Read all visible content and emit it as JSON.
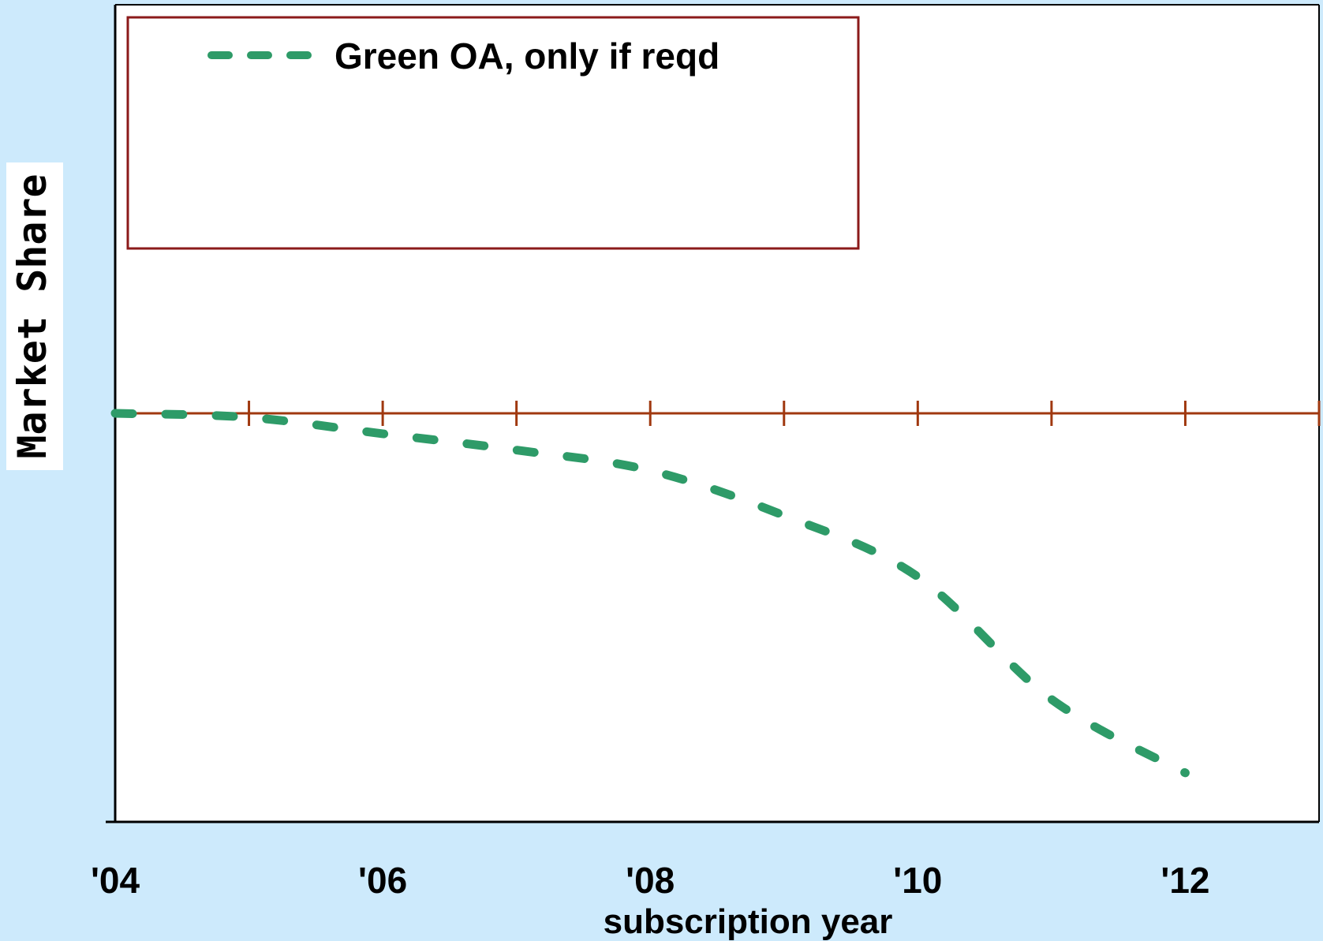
{
  "chart_data": {
    "type": "line",
    "title": "",
    "xlabel": "subscription year",
    "ylabel": "Market Share",
    "xlim": [
      2004,
      2013
    ],
    "ylim": [
      -1,
      1
    ],
    "x_tick_values": [
      2004,
      2006,
      2008,
      2010,
      2012
    ],
    "x_tick_labels": [
      "'04",
      "'06",
      "'08",
      "'10",
      "'12"
    ],
    "grid": false,
    "legend_position": "top-left",
    "colors": {
      "background": "#cdeafc",
      "plot_background": "#ffffff",
      "axis": "#000000",
      "baseline": "#a0380f",
      "legend_border": "#8b1a1a",
      "series": "#2e9b68"
    },
    "series": [
      {
        "name": "Green OA, only if reqd",
        "style": "dashed",
        "x": [
          2004,
          2005,
          2006,
          2007,
          2008,
          2009,
          2010,
          2011,
          2012
        ],
        "y": [
          0,
          -0.01,
          -0.05,
          -0.09,
          -0.14,
          -0.25,
          -0.4,
          -0.7,
          -0.88
        ]
      }
    ]
  }
}
